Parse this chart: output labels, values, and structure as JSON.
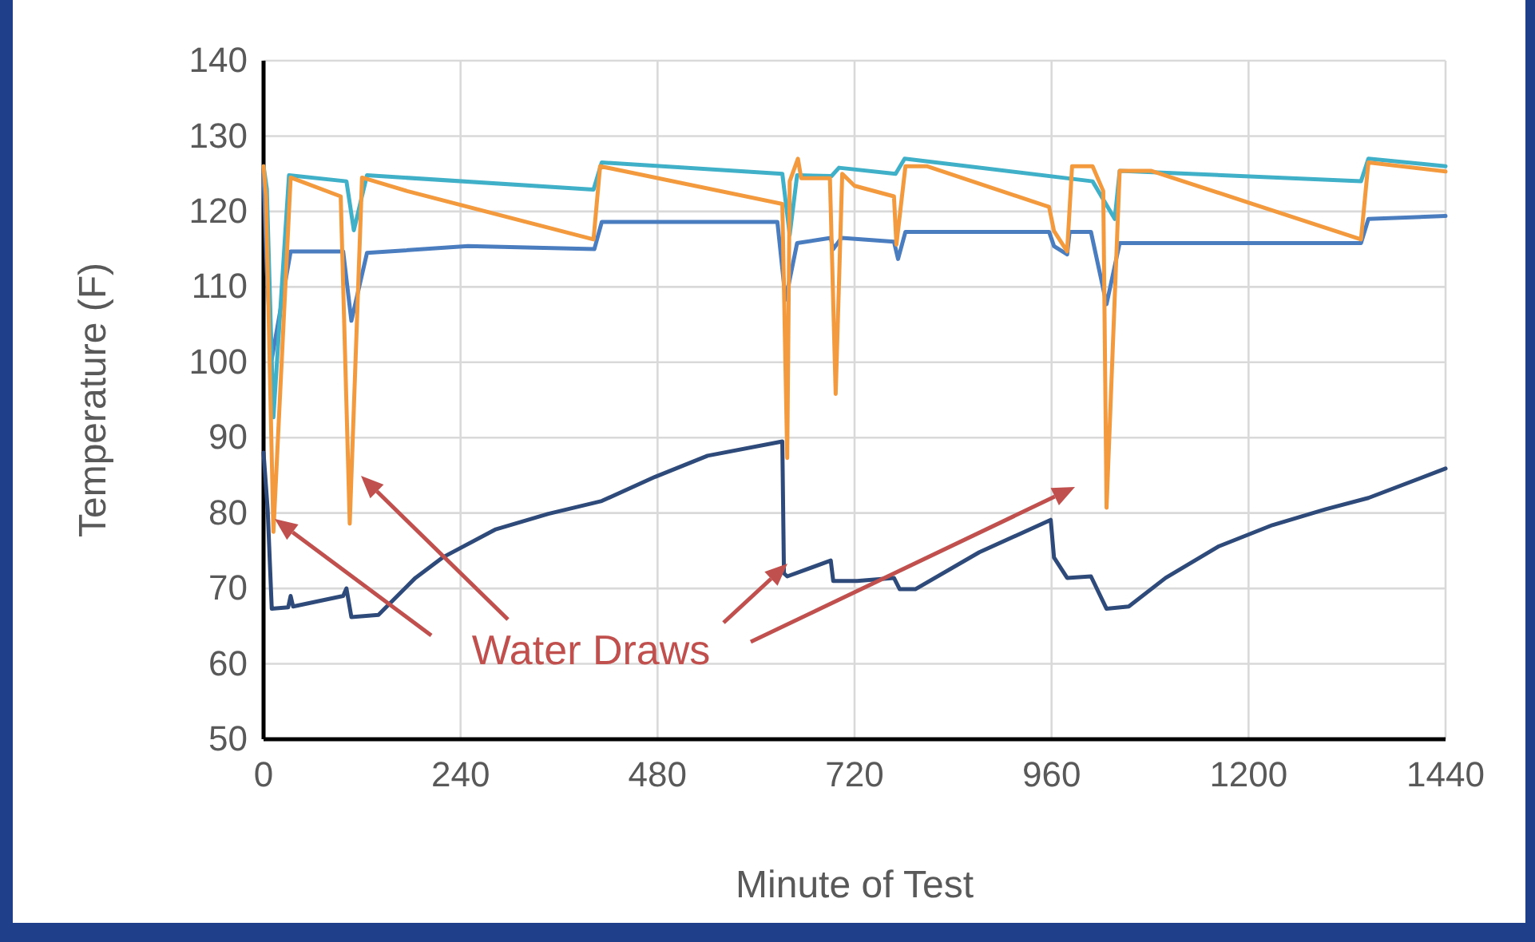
{
  "chart_data": {
    "type": "line",
    "xlabel": "Minute of Test",
    "ylabel": "Temperature (F)",
    "xlim": [
      0,
      1440
    ],
    "xticks": [
      0,
      240,
      480,
      720,
      960,
      1200,
      1440
    ],
    "ylim": [
      50,
      140
    ],
    "yticks": [
      50,
      60,
      70,
      80,
      90,
      100,
      110,
      120,
      130,
      140
    ],
    "grid": true,
    "marker": "none",
    "line_style": "solid",
    "annotations": [
      "Water Draws"
    ],
    "series": [
      {
        "color": "#2e4a7a",
        "x": [
          0,
          5,
          10,
          30,
          33,
          36,
          97,
          101,
          107,
          140,
          185,
          218,
          282,
          347,
          412,
          477,
          541,
          632,
          634,
          638,
          691,
          694,
          723,
          768,
          775,
          794,
          872,
          959,
          963,
          979,
          1008,
          1027,
          1054,
          1099,
          1164,
          1229,
          1294,
          1346,
          1440
        ],
        "values": [
          88,
          80.5,
          67.3,
          67.5,
          69,
          67.6,
          69,
          70,
          66.2,
          66.5,
          71.4,
          74.1,
          77.8,
          79.9,
          81.6,
          84.8,
          87.6,
          89.5,
          72,
          71.6,
          73.7,
          71,
          71,
          71.4,
          69.9,
          69.9,
          74.8,
          79.1,
          74.1,
          71.4,
          71.6,
          67.3,
          67.6,
          71.4,
          75.6,
          78.4,
          80.5,
          82,
          85.9
        ]
      },
      {
        "color": "#4a7cc0",
        "x": [
          0,
          4,
          10,
          33,
          97,
          107,
          126,
          249,
          403,
          412,
          626,
          636,
          650,
          691,
          694,
          704,
          768,
          773,
          782,
          957,
          963,
          979,
          982,
          1008,
          1027,
          1043,
          1337,
          1346,
          1440
        ],
        "values": [
          125,
          112,
          100.4,
          114.7,
          114.7,
          105.5,
          114.5,
          115.4,
          115,
          118.6,
          118.6,
          108.3,
          115.8,
          116.5,
          115,
          116.5,
          116,
          113.7,
          117.3,
          117.3,
          115.4,
          114.3,
          117.3,
          117.3,
          107.7,
          115.8,
          115.8,
          119,
          119.4
        ]
      },
      {
        "color": "#3fb0c8",
        "x": [
          0,
          4,
          12,
          31,
          101,
          110,
          126,
          402,
          412,
          632,
          641,
          650,
          692,
          701,
          770,
          781,
          1010,
          1037,
          1043,
          1337,
          1346,
          1440
        ],
        "values": [
          126,
          123,
          92.7,
          124.8,
          124,
          117.5,
          124.8,
          122.9,
          126.5,
          125,
          116.9,
          124.8,
          124.7,
          125.8,
          125,
          127,
          124,
          119,
          125.4,
          124,
          127,
          126
        ]
      },
      {
        "color": "#f39a3f",
        "x": [
          0,
          3,
          12,
          33,
          94,
          105,
          120,
          175,
          402,
          410,
          632,
          638,
          641,
          651,
          655,
          690,
          697,
          705,
          720,
          768,
          771,
          782,
          808,
          957,
          963,
          979,
          985,
          1010,
          1023,
          1027,
          1043,
          1081,
          1337,
          1346,
          1440
        ],
        "values": [
          126,
          122,
          77.5,
          124.5,
          122,
          78.6,
          124.5,
          122.7,
          116.3,
          126,
          121,
          87.3,
          124,
          127,
          124.4,
          124.4,
          95.8,
          125,
          123.4,
          122,
          115.6,
          126,
          126,
          120.6,
          117.4,
          114.7,
          126,
          126,
          122.7,
          80.7,
          125.4,
          125.4,
          116.3,
          126.5,
          125.3
        ]
      }
    ]
  }
}
